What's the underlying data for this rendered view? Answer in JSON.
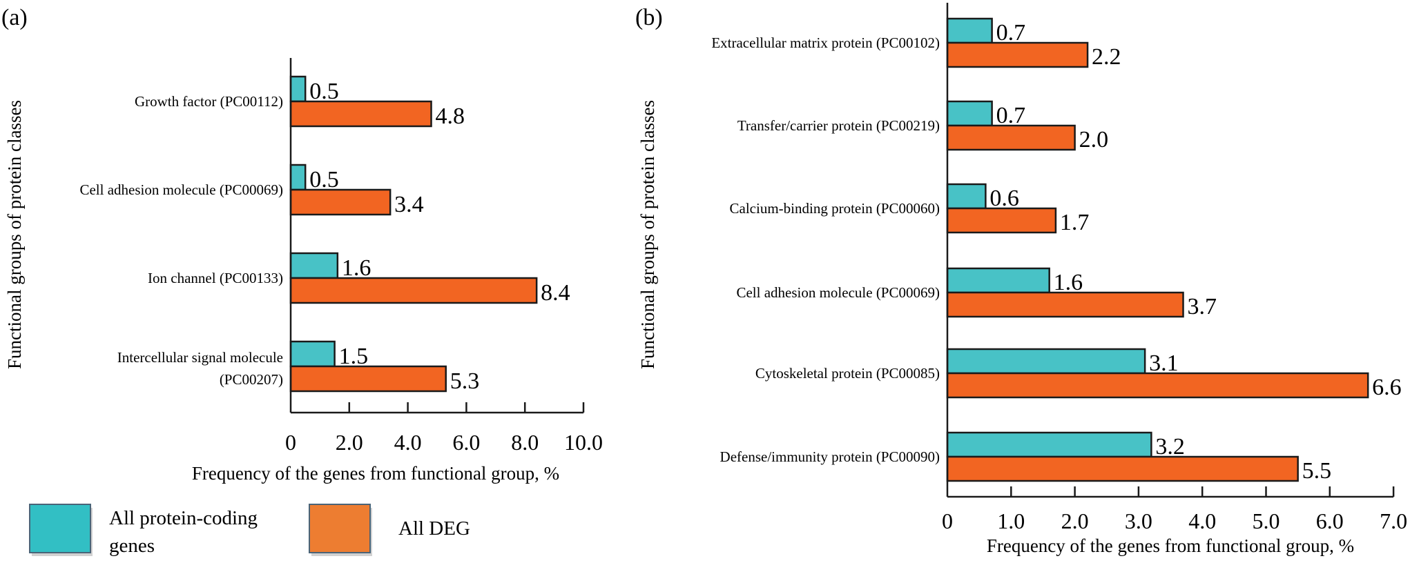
{
  "figure": {
    "legend": [
      {
        "name": "All protein-coding genes",
        "lines": [
          "All protein-coding",
          "genes"
        ],
        "color": "#32bfc4"
      },
      {
        "name": "All DEG",
        "lines": [
          "All DEG"
        ],
        "color": "#ed7d31"
      }
    ]
  },
  "chart_data": [
    {
      "panel": "(a)",
      "type": "bar",
      "orientation": "horizontal",
      "xlabel": "Frequency of the genes from functional group, %",
      "ylabel": "Functional groups of protein classes",
      "xlim": [
        0,
        10.0
      ],
      "xticks": [
        "0",
        "2.0",
        "4.0",
        "6.0",
        "8.0",
        "10.0"
      ],
      "xtick_values": [
        0,
        2,
        4,
        6,
        8,
        10
      ],
      "categories": [
        [
          "Growth factor (PC00112)"
        ],
        [
          "Cell adhesion molecule (PC00069)"
        ],
        [
          "Ion channel (PC00133)"
        ],
        [
          "Intercellular signal molecule",
          "(PC00207)"
        ]
      ],
      "series": [
        {
          "name": "All protein-coding genes",
          "color": "#48c2c6",
          "values": [
            0.5,
            0.5,
            1.6,
            1.5
          ],
          "labels": [
            "0.5",
            "0.5",
            "1.6",
            "1.5"
          ]
        },
        {
          "name": "All DEG",
          "color": "#f26522",
          "values": [
            4.8,
            3.4,
            8.4,
            5.3
          ],
          "labels": [
            "4.8",
            "3.4",
            "8.4",
            "5.3"
          ]
        }
      ],
      "grid": false,
      "legend": "bottom-left"
    },
    {
      "panel": "(b)",
      "type": "bar",
      "orientation": "horizontal",
      "xlabel": "Frequency of the genes from functional group, %",
      "ylabel": "Functional groups of protein classes",
      "xlim": [
        0,
        7.0
      ],
      "xticks": [
        "0",
        "1.0",
        "2.0",
        "3.0",
        "4.0",
        "5.0",
        "6.0",
        "7.0"
      ],
      "xtick_values": [
        0,
        1,
        2,
        3,
        4,
        5,
        6,
        7
      ],
      "categories": [
        [
          "Extracellular matrix protein (PC00102)"
        ],
        [
          "Transfer/carrier protein (PC00219)"
        ],
        [
          "Calcium-binding protein (PC00060)"
        ],
        [
          "Cell adhesion molecule (PC00069)"
        ],
        [
          "Cytoskeletal protein (PC00085)"
        ],
        [
          "Defense/immunity protein (PC00090)"
        ]
      ],
      "series": [
        {
          "name": "All protein-coding genes",
          "color": "#48c2c6",
          "values": [
            0.7,
            0.7,
            0.6,
            1.6,
            3.1,
            3.2
          ],
          "labels": [
            "0.7",
            "0.7",
            "0.6",
            "1.6",
            "3.1",
            "3.2"
          ]
        },
        {
          "name": "All DEG",
          "color": "#f26522",
          "values": [
            2.2,
            2.0,
            1.7,
            3.7,
            6.6,
            5.5
          ],
          "labels": [
            "2.2",
            "2.0",
            "1.7",
            "3.7",
            "6.6",
            "5.5"
          ]
        }
      ],
      "grid": false,
      "legend": "shared (bottom-left of figure)"
    }
  ]
}
